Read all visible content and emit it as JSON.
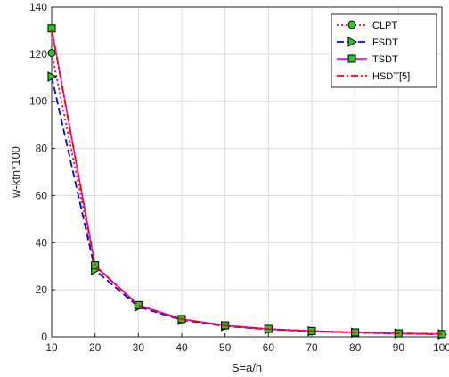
{
  "chart_data": {
    "type": "line",
    "xlabel": "S=a/h",
    "ylabel": "w-ktn*100",
    "xlim": [
      10,
      100
    ],
    "ylim": [
      0,
      140
    ],
    "x_ticks": [
      10,
      20,
      30,
      40,
      50,
      60,
      70,
      80,
      90,
      100
    ],
    "y_ticks": [
      0,
      20,
      40,
      60,
      80,
      100,
      120,
      140
    ],
    "grid": true,
    "legend_position": "top-right",
    "x": [
      10,
      20,
      30,
      40,
      50,
      60,
      70,
      80,
      90,
      100
    ],
    "series": [
      {
        "name": "CLPT",
        "color": "#ff0000",
        "line_style": "dotted",
        "marker": "circle",
        "marker_fill": "#22cc22",
        "values": [
          120.5,
          30.1,
          13.4,
          7.5,
          4.8,
          3.3,
          2.5,
          1.9,
          1.5,
          1.2
        ]
      },
      {
        "name": "FSDT",
        "color": "#0000ff",
        "line_style": "dashed",
        "marker": "triangle-right",
        "marker_fill": "#22cc22",
        "values": [
          110.5,
          28.4,
          12.8,
          7.2,
          4.6,
          3.2,
          2.4,
          1.8,
          1.4,
          1.1
        ]
      },
      {
        "name": "TSDT",
        "color": "#ff00ff",
        "line_style": "solid",
        "marker": "square",
        "marker_fill": "#22cc22",
        "values": [
          131.0,
          30.4,
          13.5,
          7.6,
          4.9,
          3.4,
          2.5,
          1.9,
          1.5,
          1.2
        ]
      },
      {
        "name": "HSDT[5]",
        "color": "#ff0000",
        "line_style": "dashdot",
        "marker": "none",
        "marker_fill": "",
        "values": [
          130.5,
          30.2,
          13.4,
          7.5,
          4.8,
          3.3,
          2.5,
          1.9,
          1.5,
          1.2
        ]
      }
    ]
  }
}
